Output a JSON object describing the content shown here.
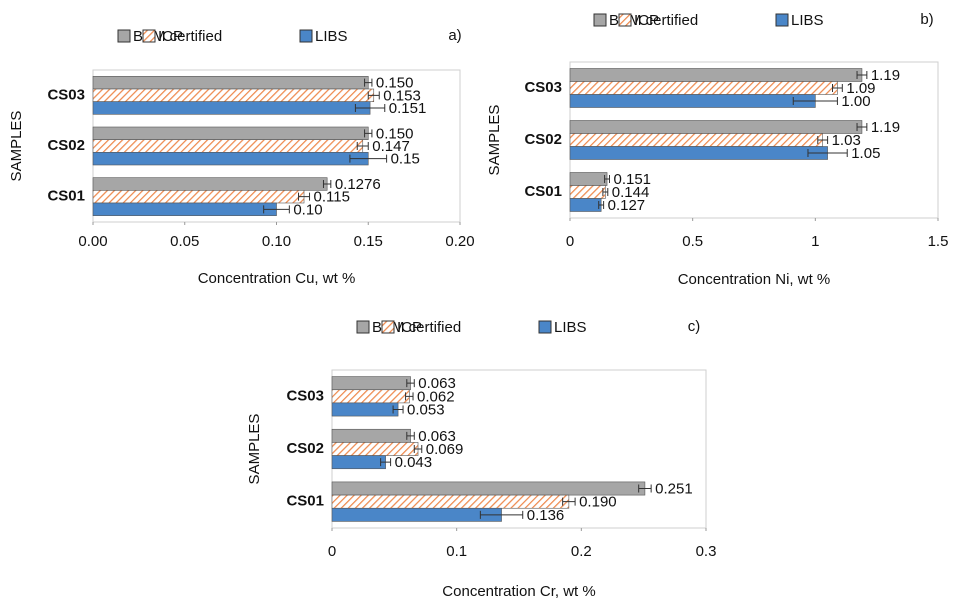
{
  "chart_data": [
    {
      "type": "bar",
      "orientation": "horizontal",
      "panel_label": "a)",
      "xlabel": "Concentration Cu, wt %",
      "ylabel": "SAMPLES",
      "categories": [
        "CS01",
        "CS02",
        "CS03"
      ],
      "series": [
        {
          "name": "BAM certified",
          "color": "#a6a6a6",
          "hatch": false,
          "values": [
            0.1276,
            0.15,
            0.15
          ],
          "value_labels": [
            "0.1276",
            "0.150",
            "0.150"
          ],
          "errors": [
            0.002,
            0.002,
            0.002
          ]
        },
        {
          "name": "ICP",
          "color": "#ee8a4e",
          "hatch": true,
          "values": [
            0.115,
            0.147,
            0.153
          ],
          "value_labels": [
            "0.115",
            "0.147",
            "0.153"
          ],
          "errors": [
            0.003,
            0.003,
            0.003
          ]
        },
        {
          "name": "LIBS",
          "color": "#4a86c8",
          "hatch": false,
          "values": [
            0.1,
            0.15,
            0.151
          ],
          "value_labels": [
            "0.10",
            "0.15",
            "0.151"
          ],
          "errors": [
            0.007,
            0.01,
            0.008
          ]
        }
      ],
      "xlim": [
        0,
        0.2
      ],
      "xticks": [
        {
          "value": 0,
          "label": "0.00"
        },
        {
          "value": 0.05,
          "label": "0.05"
        },
        {
          "value": 0.1,
          "label": "0.10"
        },
        {
          "value": 0.15,
          "label": "0.15"
        },
        {
          "value": 0.2,
          "label": "0.20"
        }
      ]
    },
    {
      "type": "bar",
      "orientation": "horizontal",
      "panel_label": "b)",
      "xlabel": "Concentration Ni, wt %",
      "ylabel": "SAMPLES",
      "categories": [
        "CS01",
        "CS02",
        "CS03"
      ],
      "series": [
        {
          "name": "BAM certified",
          "color": "#a6a6a6",
          "hatch": false,
          "values": [
            0.151,
            1.19,
            1.19
          ],
          "value_labels": [
            "0.151",
            "1.19",
            "1.19"
          ],
          "errors": [
            0.01,
            0.02,
            0.02
          ]
        },
        {
          "name": "ICP",
          "color": "#ee8a4e",
          "hatch": true,
          "values": [
            0.144,
            1.03,
            1.09
          ],
          "value_labels": [
            "0.144",
            "1.03",
            "1.09"
          ],
          "errors": [
            0.01,
            0.02,
            0.02
          ]
        },
        {
          "name": "LIBS",
          "color": "#4a86c8",
          "hatch": false,
          "values": [
            0.127,
            1.05,
            1.0
          ],
          "value_labels": [
            "0.127",
            "1.05",
            "1.00"
          ],
          "errors": [
            0.01,
            0.08,
            0.09
          ]
        }
      ],
      "xlim": [
        0,
        1.5
      ],
      "xticks": [
        0,
        0.5,
        1,
        1.5
      ]
    },
    {
      "type": "bar",
      "orientation": "horizontal",
      "panel_label": "c)",
      "xlabel": "Concentration Cr, wt %",
      "ylabel": "SAMPLES",
      "categories": [
        "CS01",
        "CS02",
        "CS03"
      ],
      "series": [
        {
          "name": "BAM certified",
          "color": "#a6a6a6",
          "hatch": false,
          "values": [
            0.251,
            0.063,
            0.063
          ],
          "value_labels": [
            "0.251",
            "0.063",
            "0.063"
          ],
          "errors": [
            0.005,
            0.003,
            0.003
          ]
        },
        {
          "name": "ICP",
          "color": "#ee8a4e",
          "hatch": true,
          "values": [
            0.19,
            0.069,
            0.062
          ],
          "value_labels": [
            "0.190",
            "0.069",
            "0.062"
          ],
          "errors": [
            0.005,
            0.003,
            0.003
          ]
        },
        {
          "name": "LIBS",
          "color": "#4a86c8",
          "hatch": false,
          "values": [
            0.136,
            0.043,
            0.053
          ],
          "value_labels": [
            "0.136",
            "0.043",
            "0.053"
          ],
          "errors": [
            0.017,
            0.004,
            0.004
          ]
        }
      ],
      "xlim": [
        0,
        0.3
      ],
      "xticks": [
        0,
        0.1,
        0.2,
        0.3
      ]
    }
  ]
}
